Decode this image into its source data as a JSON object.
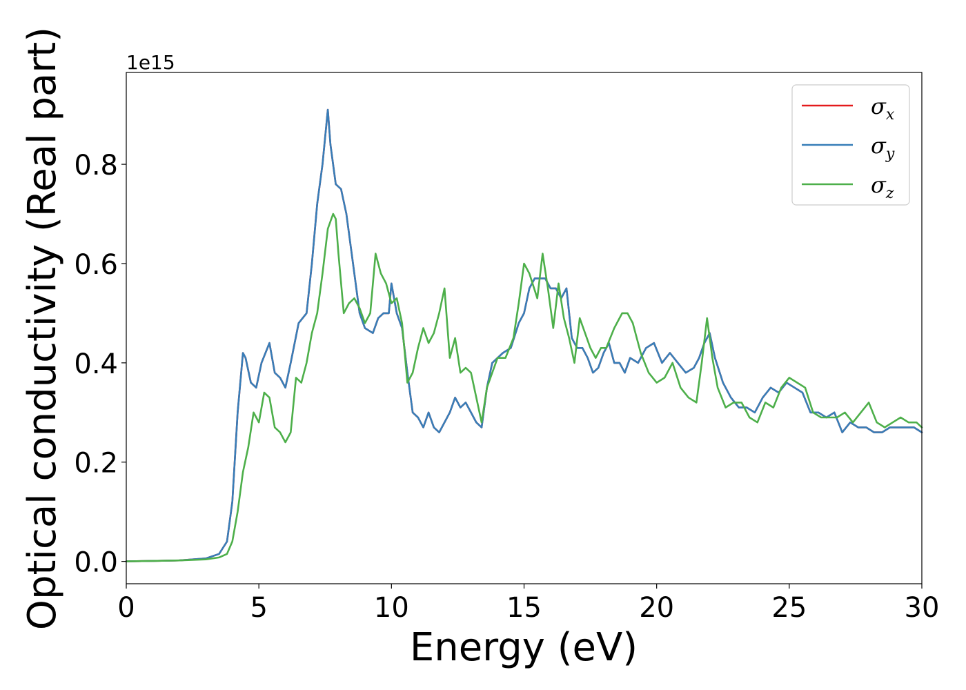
{
  "chart_data": {
    "type": "line",
    "xlabel": "Energy (eV)",
    "ylabel": "Optical conductivity (Real part)",
    "y_offset_label": "1e15",
    "xlim": [
      0,
      30
    ],
    "ylim": [
      -0.045,
      0.985
    ],
    "x_ticks": [
      0,
      5,
      10,
      15,
      20,
      25,
      30
    ],
    "x_tick_labels": [
      "0",
      "5",
      "10",
      "15",
      "20",
      "25",
      "30"
    ],
    "y_ticks": [
      0.0,
      0.2,
      0.4,
      0.6,
      0.8
    ],
    "y_tick_labels": [
      "0.0",
      "0.2",
      "0.4",
      "0.6",
      "0.8"
    ],
    "grid": false,
    "legend_position": "top-right",
    "series": [
      {
        "name": "σx",
        "symbol": "σ",
        "subscript": "x",
        "color": "#e41a1c",
        "x": [
          0,
          1,
          2,
          3,
          3.5,
          3.8,
          4.0,
          4.2,
          4.4,
          4.5,
          4.7,
          4.9,
          5.1,
          5.4,
          5.6,
          5.8,
          6.0,
          6.2,
          6.5,
          6.8,
          7.0,
          7.2,
          7.4,
          7.6,
          7.7,
          7.9,
          8.1,
          8.3,
          8.5,
          8.8,
          9.0,
          9.3,
          9.5,
          9.7,
          9.9,
          10.0,
          10.2,
          10.4,
          10.6,
          10.8,
          11.0,
          11.2,
          11.4,
          11.6,
          11.8,
          12.0,
          12.2,
          12.4,
          12.6,
          12.8,
          13.0,
          13.2,
          13.4,
          13.6,
          13.8,
          14.0,
          14.2,
          14.5,
          14.8,
          15.0,
          15.2,
          15.4,
          15.6,
          15.8,
          16.0,
          16.2,
          16.4,
          16.6,
          16.8,
          17.0,
          17.2,
          17.4,
          17.6,
          17.8,
          18.0,
          18.2,
          18.4,
          18.6,
          18.8,
          19.0,
          19.3,
          19.6,
          19.9,
          20.2,
          20.5,
          20.8,
          21.1,
          21.4,
          21.6,
          21.8,
          22.0,
          22.2,
          22.5,
          22.8,
          23.1,
          23.4,
          23.7,
          24.0,
          24.3,
          24.6,
          24.9,
          25.2,
          25.5,
          25.8,
          26.1,
          26.4,
          26.7,
          27.0,
          27.3,
          27.6,
          27.9,
          28.2,
          28.5,
          28.8,
          29.1,
          29.4,
          29.7,
          30.0
        ],
        "y": [
          0.0,
          0.001,
          0.002,
          0.006,
          0.015,
          0.04,
          0.12,
          0.3,
          0.42,
          0.41,
          0.36,
          0.35,
          0.4,
          0.44,
          0.38,
          0.37,
          0.35,
          0.4,
          0.48,
          0.5,
          0.6,
          0.72,
          0.8,
          0.91,
          0.84,
          0.76,
          0.75,
          0.7,
          0.62,
          0.5,
          0.47,
          0.46,
          0.49,
          0.5,
          0.5,
          0.56,
          0.5,
          0.47,
          0.38,
          0.3,
          0.29,
          0.27,
          0.3,
          0.27,
          0.26,
          0.28,
          0.3,
          0.33,
          0.31,
          0.32,
          0.3,
          0.28,
          0.27,
          0.35,
          0.4,
          0.41,
          0.42,
          0.43,
          0.48,
          0.5,
          0.55,
          0.57,
          0.57,
          0.57,
          0.55,
          0.55,
          0.53,
          0.55,
          0.45,
          0.43,
          0.43,
          0.41,
          0.38,
          0.39,
          0.42,
          0.44,
          0.4,
          0.4,
          0.38,
          0.41,
          0.4,
          0.43,
          0.44,
          0.4,
          0.42,
          0.4,
          0.38,
          0.39,
          0.41,
          0.44,
          0.46,
          0.41,
          0.36,
          0.33,
          0.31,
          0.31,
          0.3,
          0.33,
          0.35,
          0.34,
          0.36,
          0.35,
          0.34,
          0.3,
          0.3,
          0.29,
          0.3,
          0.26,
          0.28,
          0.27,
          0.27,
          0.26,
          0.26,
          0.27,
          0.27,
          0.27,
          0.27,
          0.26
        ]
      },
      {
        "name": "σy",
        "symbol": "σ",
        "subscript": "y",
        "color": "#377eb8",
        "x": [
          0,
          1,
          2,
          3,
          3.5,
          3.8,
          4.0,
          4.2,
          4.4,
          4.5,
          4.7,
          4.9,
          5.1,
          5.4,
          5.6,
          5.8,
          6.0,
          6.2,
          6.5,
          6.8,
          7.0,
          7.2,
          7.4,
          7.6,
          7.7,
          7.9,
          8.1,
          8.3,
          8.5,
          8.8,
          9.0,
          9.3,
          9.5,
          9.7,
          9.9,
          10.0,
          10.2,
          10.4,
          10.6,
          10.8,
          11.0,
          11.2,
          11.4,
          11.6,
          11.8,
          12.0,
          12.2,
          12.4,
          12.6,
          12.8,
          13.0,
          13.2,
          13.4,
          13.6,
          13.8,
          14.0,
          14.2,
          14.5,
          14.8,
          15.0,
          15.2,
          15.4,
          15.6,
          15.8,
          16.0,
          16.2,
          16.4,
          16.6,
          16.8,
          17.0,
          17.2,
          17.4,
          17.6,
          17.8,
          18.0,
          18.2,
          18.4,
          18.6,
          18.8,
          19.0,
          19.3,
          19.6,
          19.9,
          20.2,
          20.5,
          20.8,
          21.1,
          21.4,
          21.6,
          21.8,
          22.0,
          22.2,
          22.5,
          22.8,
          23.1,
          23.4,
          23.7,
          24.0,
          24.3,
          24.6,
          24.9,
          25.2,
          25.5,
          25.8,
          26.1,
          26.4,
          26.7,
          27.0,
          27.3,
          27.6,
          27.9,
          28.2,
          28.5,
          28.8,
          29.1,
          29.4,
          29.7,
          30.0
        ],
        "y": [
          0.0,
          0.001,
          0.002,
          0.006,
          0.015,
          0.04,
          0.12,
          0.3,
          0.42,
          0.41,
          0.36,
          0.35,
          0.4,
          0.44,
          0.38,
          0.37,
          0.35,
          0.4,
          0.48,
          0.5,
          0.6,
          0.72,
          0.8,
          0.91,
          0.84,
          0.76,
          0.75,
          0.7,
          0.62,
          0.5,
          0.47,
          0.46,
          0.49,
          0.5,
          0.5,
          0.56,
          0.5,
          0.47,
          0.38,
          0.3,
          0.29,
          0.27,
          0.3,
          0.27,
          0.26,
          0.28,
          0.3,
          0.33,
          0.31,
          0.32,
          0.3,
          0.28,
          0.27,
          0.35,
          0.4,
          0.41,
          0.42,
          0.43,
          0.48,
          0.5,
          0.55,
          0.57,
          0.57,
          0.57,
          0.55,
          0.55,
          0.53,
          0.55,
          0.45,
          0.43,
          0.43,
          0.41,
          0.38,
          0.39,
          0.42,
          0.44,
          0.4,
          0.4,
          0.38,
          0.41,
          0.4,
          0.43,
          0.44,
          0.4,
          0.42,
          0.4,
          0.38,
          0.39,
          0.41,
          0.44,
          0.46,
          0.41,
          0.36,
          0.33,
          0.31,
          0.31,
          0.3,
          0.33,
          0.35,
          0.34,
          0.36,
          0.35,
          0.34,
          0.3,
          0.3,
          0.29,
          0.3,
          0.26,
          0.28,
          0.27,
          0.27,
          0.26,
          0.26,
          0.27,
          0.27,
          0.27,
          0.27,
          0.26
        ]
      },
      {
        "name": "σz",
        "symbol": "σ",
        "subscript": "z",
        "color": "#4daf4a",
        "x": [
          0,
          1,
          2,
          3,
          3.5,
          3.8,
          4.0,
          4.2,
          4.4,
          4.6,
          4.8,
          5.0,
          5.2,
          5.4,
          5.6,
          5.8,
          6.0,
          6.2,
          6.4,
          6.6,
          6.8,
          7.0,
          7.2,
          7.4,
          7.6,
          7.8,
          7.9,
          8.0,
          8.2,
          8.4,
          8.6,
          8.8,
          9.0,
          9.2,
          9.4,
          9.6,
          9.8,
          10.0,
          10.2,
          10.4,
          10.6,
          10.8,
          11.0,
          11.2,
          11.4,
          11.6,
          11.8,
          12.0,
          12.2,
          12.4,
          12.6,
          12.8,
          13.0,
          13.2,
          13.4,
          13.6,
          13.8,
          14.0,
          14.3,
          14.6,
          14.8,
          15.0,
          15.2,
          15.5,
          15.7,
          15.9,
          16.1,
          16.3,
          16.5,
          16.7,
          16.9,
          17.1,
          17.3,
          17.5,
          17.7,
          17.9,
          18.1,
          18.4,
          18.7,
          18.9,
          19.1,
          19.4,
          19.7,
          20.0,
          20.3,
          20.6,
          20.9,
          21.2,
          21.5,
          21.7,
          21.9,
          22.1,
          22.3,
          22.6,
          22.9,
          23.2,
          23.5,
          23.8,
          24.1,
          24.4,
          24.7,
          25.0,
          25.3,
          25.6,
          25.9,
          26.2,
          26.5,
          26.8,
          27.1,
          27.4,
          27.7,
          28.0,
          28.3,
          28.6,
          28.9,
          29.2,
          29.5,
          29.8,
          30.0
        ],
        "y": [
          0.0,
          0.001,
          0.002,
          0.004,
          0.008,
          0.015,
          0.04,
          0.1,
          0.18,
          0.23,
          0.3,
          0.28,
          0.34,
          0.33,
          0.27,
          0.26,
          0.24,
          0.26,
          0.37,
          0.36,
          0.4,
          0.46,
          0.5,
          0.58,
          0.67,
          0.7,
          0.69,
          0.62,
          0.5,
          0.52,
          0.53,
          0.51,
          0.48,
          0.5,
          0.62,
          0.58,
          0.56,
          0.52,
          0.53,
          0.48,
          0.36,
          0.38,
          0.43,
          0.47,
          0.44,
          0.46,
          0.5,
          0.55,
          0.41,
          0.45,
          0.38,
          0.39,
          0.38,
          0.33,
          0.28,
          0.35,
          0.38,
          0.41,
          0.41,
          0.45,
          0.52,
          0.6,
          0.58,
          0.53,
          0.62,
          0.55,
          0.47,
          0.56,
          0.49,
          0.45,
          0.4,
          0.49,
          0.46,
          0.43,
          0.41,
          0.43,
          0.43,
          0.47,
          0.5,
          0.5,
          0.48,
          0.42,
          0.38,
          0.36,
          0.37,
          0.4,
          0.35,
          0.33,
          0.32,
          0.4,
          0.49,
          0.41,
          0.35,
          0.31,
          0.32,
          0.32,
          0.29,
          0.28,
          0.32,
          0.31,
          0.35,
          0.37,
          0.36,
          0.35,
          0.3,
          0.29,
          0.29,
          0.29,
          0.3,
          0.28,
          0.3,
          0.32,
          0.28,
          0.27,
          0.28,
          0.29,
          0.28,
          0.28,
          0.27
        ]
      }
    ]
  }
}
